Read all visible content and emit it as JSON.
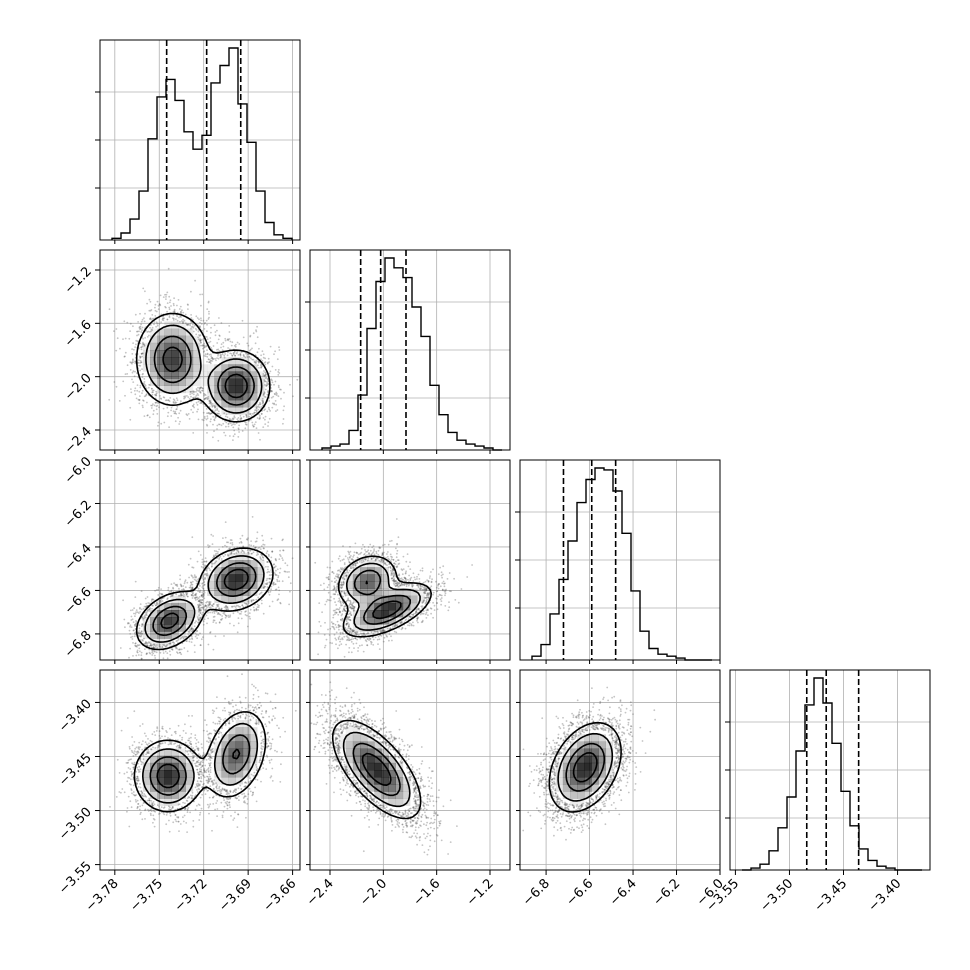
{
  "chart_data": {
    "type": "corner",
    "n_params": 4,
    "grid": true,
    "colors": {
      "contour": "#000000",
      "hist": "#000000",
      "points": "#555555",
      "grid": "#b0b0b0",
      "density": "#000000"
    },
    "params": [
      {
        "range": [
          -3.79,
          -3.655
        ],
        "ticks": [
          -3.78,
          -3.75,
          -3.72,
          -3.69,
          -3.66
        ],
        "tick_labels": [
          "−3.78",
          "−3.75",
          "−3.72",
          "−3.69",
          "−3.66"
        ],
        "quantiles": [
          -3.745,
          -3.718,
          -3.695
        ]
      },
      {
        "range": [
          -2.55,
          -1.05
        ],
        "ticks": [
          -2.4,
          -2.0,
          -1.6,
          -1.2
        ],
        "tick_labels": [
          "−2.4",
          "−2.0",
          "−1.6",
          "−1.2"
        ],
        "quantiles": [
          -2.17,
          -2.02,
          -1.83
        ]
      },
      {
        "range": [
          -6.92,
          -6.0
        ],
        "ticks": [
          -6.8,
          -6.6,
          -6.4,
          -6.2,
          -6.0
        ],
        "tick_labels": [
          "−6.8",
          "−6.6",
          "−6.4",
          "−6.2",
          "−6.0"
        ],
        "quantiles": [
          -6.72,
          -6.59,
          -6.48
        ]
      },
      {
        "range": [
          -3.555,
          -3.37
        ],
        "ticks": [
          -3.55,
          -3.5,
          -3.45,
          -3.4
        ],
        "tick_labels": [
          "−3.55",
          "−3.50",
          "−3.45",
          "−3.40"
        ],
        "quantiles": [
          -3.484,
          -3.466,
          -3.436
        ]
      }
    ],
    "y_tick_params": [
      {
        "row": 1,
        "ticks": [
          -2.4,
          -2.0,
          -1.6,
          -1.2
        ],
        "tick_labels": [
          "−2.4",
          "−2.0",
          "−1.6",
          "−1.2"
        ]
      },
      {
        "row": 2,
        "ticks": [
          -6.8,
          -6.6,
          -6.4,
          -6.2,
          -6.0
        ],
        "tick_labels": [
          "−6.8",
          "−6.6",
          "−6.4",
          "−6.2",
          "−6.0"
        ]
      },
      {
        "row": 3,
        "ticks": [
          -3.55,
          -3.5,
          -3.45,
          -3.4
        ],
        "tick_labels": [
          "−3.55",
          "−3.50",
          "−3.45",
          "−3.40"
        ]
      }
    ],
    "histograms": [
      {
        "param": 0,
        "counts": [
          1,
          4,
          12,
          28,
          58,
          82,
          92,
          80,
          62,
          52,
          60,
          90,
          100,
          110,
          78,
          56,
          28,
          10,
          3,
          1
        ]
      },
      {
        "param": 1,
        "counts": [
          1,
          2,
          3,
          10,
          28,
          62,
          86,
          98,
          93,
          88,
          73,
          58,
          33,
          18,
          9,
          5,
          3,
          2,
          1,
          0
        ]
      },
      {
        "param": 2,
        "counts": [
          2,
          8,
          24,
          42,
          62,
          82,
          94,
          100,
          99,
          88,
          66,
          36,
          15,
          6,
          3,
          2,
          1,
          0,
          0,
          0
        ]
      },
      {
        "param": 3,
        "counts": [
          0,
          1,
          3,
          10,
          22,
          38,
          62,
          86,
          100,
          87,
          66,
          41,
          23,
          11,
          5,
          2,
          1,
          0,
          0,
          0
        ]
      }
    ],
    "pairs": [
      {
        "x": 0,
        "y": 1,
        "modes": [
          {
            "cx": -3.741,
            "cy": -1.87,
            "sx": 0.012,
            "sy": 0.17,
            "rho": 0.0,
            "w": 0.48
          },
          {
            "cx": -3.698,
            "cy": -2.07,
            "sx": 0.011,
            "sy": 0.13,
            "rho": 0.0,
            "w": 0.52
          }
        ]
      },
      {
        "x": 0,
        "y": 2,
        "modes": [
          {
            "cx": -3.743,
            "cy": -6.74,
            "sx": 0.011,
            "sy": 0.065,
            "rho": 0.35,
            "w": 0.48
          },
          {
            "cx": -3.698,
            "cy": -6.55,
            "sx": 0.012,
            "sy": 0.07,
            "rho": 0.2,
            "w": 0.52
          }
        ]
      },
      {
        "x": 1,
        "y": 2,
        "modes": [
          {
            "cx": -2.12,
            "cy": -6.56,
            "sx": 0.11,
            "sy": 0.06,
            "rho": 0.2,
            "w": 0.45
          },
          {
            "cx": -1.97,
            "cy": -6.69,
            "sx": 0.16,
            "sy": 0.06,
            "rho": 0.6,
            "w": 0.55
          }
        ]
      },
      {
        "x": 0,
        "y": 3,
        "modes": [
          {
            "cx": -3.744,
            "cy": -3.468,
            "sx": 0.011,
            "sy": 0.016,
            "rho": 0.0,
            "w": 0.55
          },
          {
            "cx": -3.698,
            "cy": -3.448,
            "sx": 0.01,
            "sy": 0.02,
            "rho": 0.3,
            "w": 0.45
          }
        ]
      },
      {
        "x": 1,
        "y": 3,
        "modes": [
          {
            "cx": -2.05,
            "cy": -3.462,
            "sx": 0.16,
            "sy": 0.022,
            "rho": -0.65,
            "w": 1.0
          }
        ]
      },
      {
        "x": 2,
        "y": 3,
        "modes": [
          {
            "cx": -6.62,
            "cy": -3.46,
            "sx": 0.08,
            "sy": 0.02,
            "rho": 0.35,
            "w": 1.0
          }
        ]
      }
    ]
  }
}
